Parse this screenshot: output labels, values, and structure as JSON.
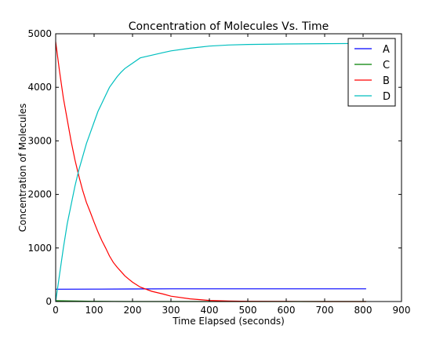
{
  "chart_data": {
    "type": "line",
    "title": "Concentration of Molecules Vs. Time",
    "xlabel": "Time Elapsed (seconds)",
    "ylabel": "Concentration of Molecules",
    "xlim": [
      0,
      900
    ],
    "ylim": [
      0,
      5000
    ],
    "xticks": [
      0,
      100,
      200,
      300,
      400,
      500,
      600,
      700,
      800,
      900
    ],
    "yticks": [
      0,
      1000,
      2000,
      3000,
      4000,
      5000
    ],
    "grid": false,
    "legend_position": "top-right",
    "series": [
      {
        "name": "A",
        "color": "#0000ff",
        "x": [
          0,
          100,
          200,
          300,
          400,
          500,
          600,
          700,
          808
        ],
        "y": [
          230,
          232,
          235,
          237,
          238,
          238,
          238,
          238,
          238
        ]
      },
      {
        "name": "C",
        "color": "#008000",
        "x": [
          0,
          50,
          100,
          150,
          200,
          808
        ],
        "y": [
          15,
          10,
          5,
          2,
          0,
          0
        ]
      },
      {
        "name": "B",
        "color": "#ff0000",
        "x": [
          0,
          10,
          20,
          30,
          40,
          50,
          60,
          70,
          80,
          90,
          100,
          110,
          120,
          130,
          140,
          150,
          160,
          170,
          180,
          190,
          200,
          220,
          250,
          280,
          300,
          350,
          400,
          450,
          500,
          600,
          700,
          808
        ],
        "y": [
          4850,
          4300,
          3800,
          3400,
          3000,
          2650,
          2350,
          2080,
          1850,
          1670,
          1480,
          1300,
          1140,
          1000,
          850,
          730,
          640,
          560,
          480,
          420,
          360,
          270,
          190,
          140,
          100,
          50,
          20,
          10,
          5,
          2,
          0,
          0
        ]
      },
      {
        "name": "D",
        "color": "#00bfbf",
        "x": [
          0,
          10,
          20,
          30,
          40,
          50,
          60,
          70,
          80,
          90,
          100,
          110,
          120,
          130,
          140,
          150,
          160,
          170,
          180,
          190,
          200,
          220,
          250,
          280,
          300,
          350,
          400,
          450,
          500,
          600,
          700,
          808
        ],
        "y": [
          0,
          500,
          1000,
          1450,
          1800,
          2150,
          2450,
          2700,
          2950,
          3150,
          3350,
          3550,
          3700,
          3850,
          4000,
          4100,
          4200,
          4280,
          4350,
          4400,
          4450,
          4550,
          4600,
          4650,
          4680,
          4730,
          4770,
          4790,
          4800,
          4810,
          4815,
          4820
        ]
      }
    ]
  }
}
